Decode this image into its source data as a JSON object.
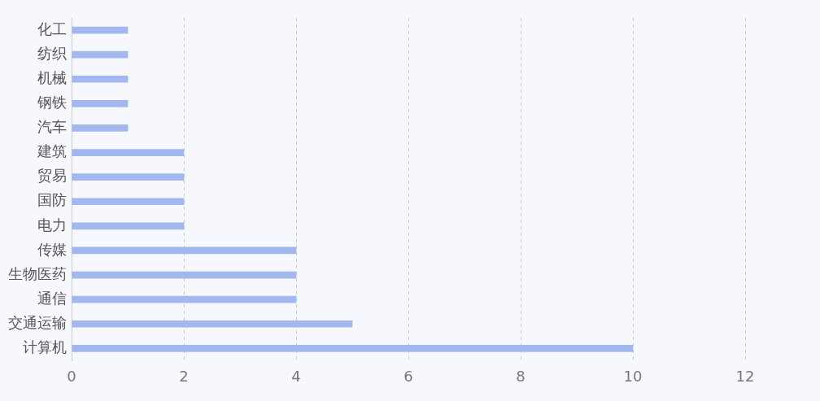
{
  "chart_data": {
    "type": "bar",
    "orientation": "horizontal",
    "categories": [
      "化工",
      "纺织",
      "机械",
      "钢铁",
      "汽车",
      "建筑",
      "贸易",
      "国防",
      "电力",
      "传媒",
      "生物医药",
      "通信",
      "交通运输",
      "计算机"
    ],
    "values": [
      1,
      1,
      1,
      1,
      1,
      2,
      2,
      2,
      2,
      4,
      4,
      4,
      5,
      10
    ],
    "color": "#a4b8f0",
    "xlim": [
      0,
      12
    ],
    "xticks": [
      0,
      2,
      4,
      6,
      8,
      10,
      12
    ],
    "grid": "x"
  }
}
